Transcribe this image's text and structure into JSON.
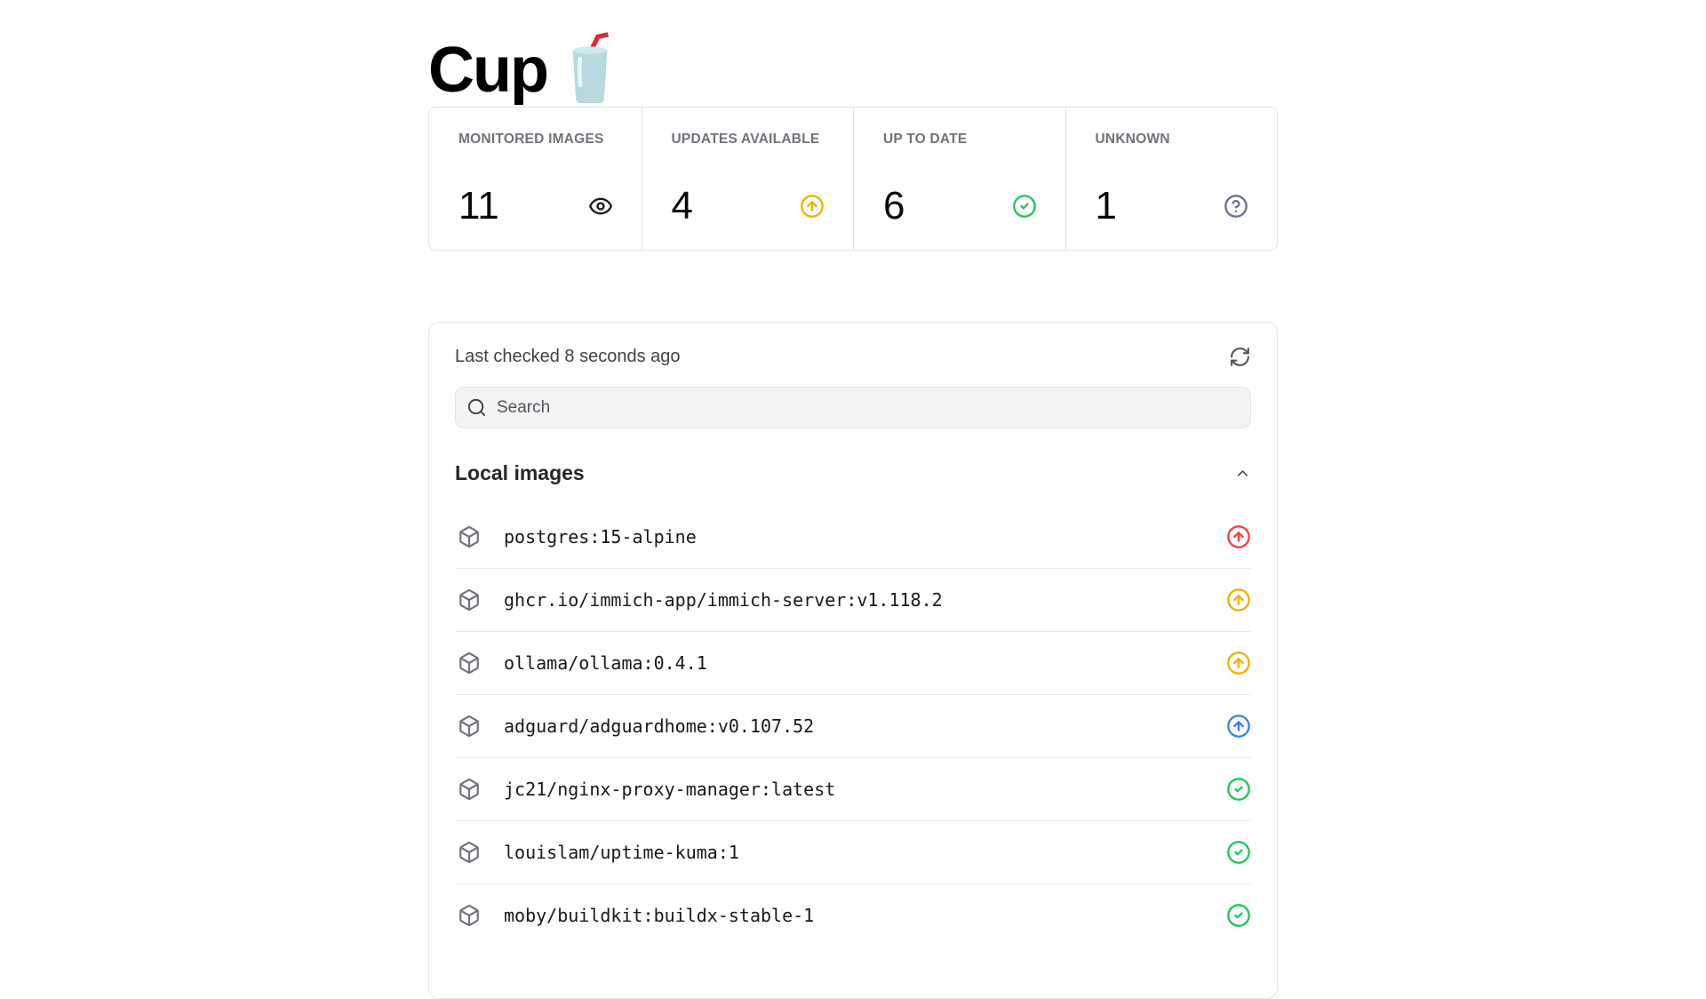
{
  "page": {
    "title": "Cup",
    "logo_icon": "cup-with-straw-icon"
  },
  "colors": {
    "border": "#e4e4e7",
    "row_divider": "#e9e9eb",
    "label_gray": "#71717a",
    "text_dark": "#18181b",
    "search_bg": "#f4f4f5",
    "status_red": "#ef4444",
    "status_amber": "#eab308",
    "status_blue": "#3b82f6",
    "status_green": "#22c55e",
    "status_gray": "#64748b"
  },
  "stats": [
    {
      "id": "monitored-images",
      "label": "MONITORED IMAGES",
      "value": "11",
      "icon": "eye-icon",
      "icon_color": "#18181b"
    },
    {
      "id": "updates-available",
      "label": "UPDATES AVAILABLE",
      "value": "4",
      "icon": "circle-arrow-up-icon",
      "icon_color": "#eab308"
    },
    {
      "id": "up-to-date",
      "label": "UP TO DATE",
      "value": "6",
      "icon": "circle-check-icon",
      "icon_color": "#22c55e"
    },
    {
      "id": "unknown",
      "label": "UNKNOWN",
      "value": "1",
      "icon": "circle-question-icon",
      "icon_color": "#64748b"
    }
  ],
  "panel": {
    "last_checked": "Last checked 8 seconds ago",
    "refresh_icon": "refresh-icon",
    "search_placeholder": "Search",
    "search_icon": "search-icon",
    "section_title": "Local images",
    "collapse_icon": "chevron-up-icon"
  },
  "images": [
    {
      "name": "postgres:15-alpine",
      "status": "update-major",
      "icon": "circle-arrow-up-icon",
      "color": "#ef4444"
    },
    {
      "name": "ghcr.io/immich-app/immich-server:v1.118.2",
      "status": "update-minor",
      "icon": "circle-arrow-up-icon",
      "color": "#eab308"
    },
    {
      "name": "ollama/ollama:0.4.1",
      "status": "update-minor",
      "icon": "circle-arrow-up-icon",
      "color": "#eab308"
    },
    {
      "name": "adguard/adguardhome:v0.107.52",
      "status": "update-patch",
      "icon": "circle-arrow-up-icon",
      "color": "#3b82f6"
    },
    {
      "name": "jc21/nginx-proxy-manager:latest",
      "status": "up-to-date",
      "icon": "circle-check-icon",
      "color": "#22c55e"
    },
    {
      "name": "louislam/uptime-kuma:1",
      "status": "up-to-date",
      "icon": "circle-check-icon",
      "color": "#22c55e"
    },
    {
      "name": "moby/buildkit:buildx-stable-1",
      "status": "up-to-date",
      "icon": "circle-check-icon",
      "color": "#22c55e"
    }
  ]
}
